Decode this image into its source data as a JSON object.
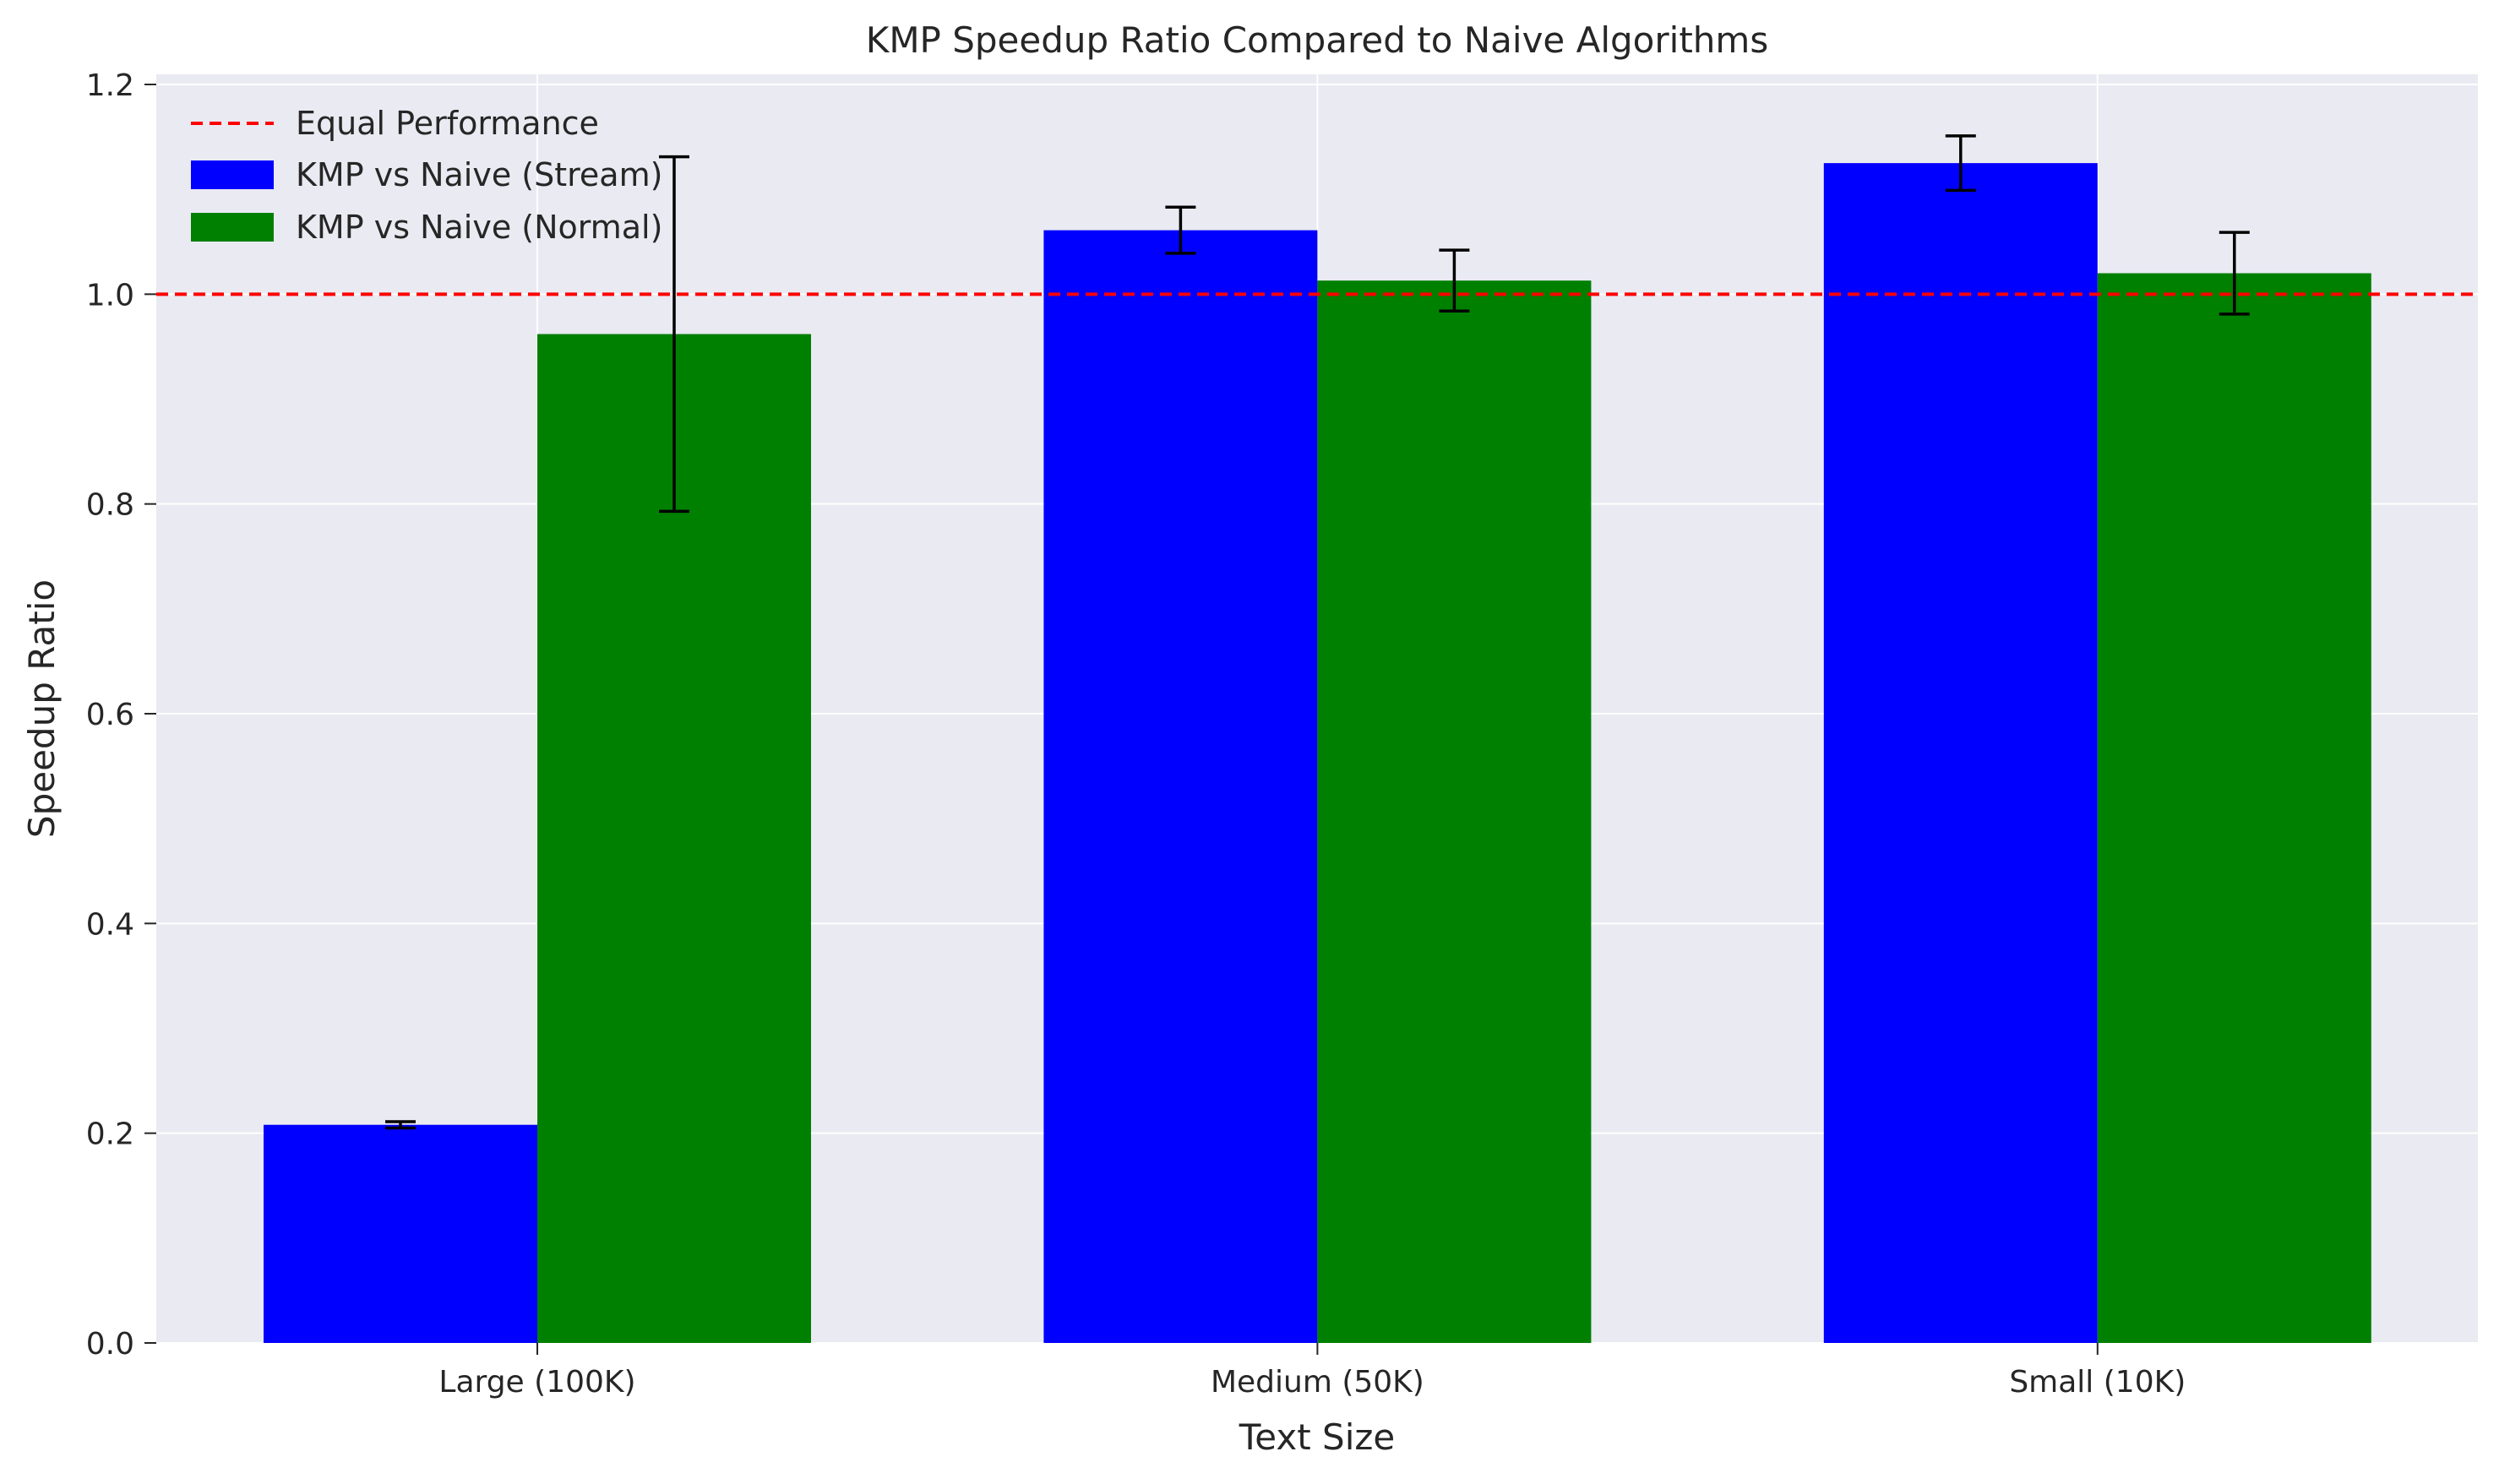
{
  "chart_data": {
    "type": "bar",
    "title": "KMP Speedup Ratio Compared to Naive Algorithms",
    "xlabel": "Text Size",
    "ylabel": "Speedup Ratio",
    "categories": [
      "Large (100K)",
      "Medium (50K)",
      "Small (10K)"
    ],
    "ylim": [
      0,
      1.2
    ],
    "yticks": [
      "0.0",
      "0.2",
      "0.4",
      "0.6",
      "0.8",
      "1.0",
      "1.2"
    ],
    "grid": true,
    "legend_position": "top-left",
    "series": [
      {
        "name": "KMP vs Naive (Stream)",
        "color": "#0000ff",
        "values": [
          0.208,
          1.061,
          1.125
        ],
        "errors": [
          0.003,
          0.022,
          0.026
        ]
      },
      {
        "name": "KMP vs Naive (Normal)",
        "color": "#008000",
        "values": [
          0.962,
          1.013,
          1.02
        ],
        "errors": [
          0.169,
          0.029,
          0.039
        ]
      }
    ],
    "reference_line": {
      "name": "Equal Performance",
      "value": 1.0,
      "color": "#ff0000",
      "style": "dashed"
    }
  }
}
